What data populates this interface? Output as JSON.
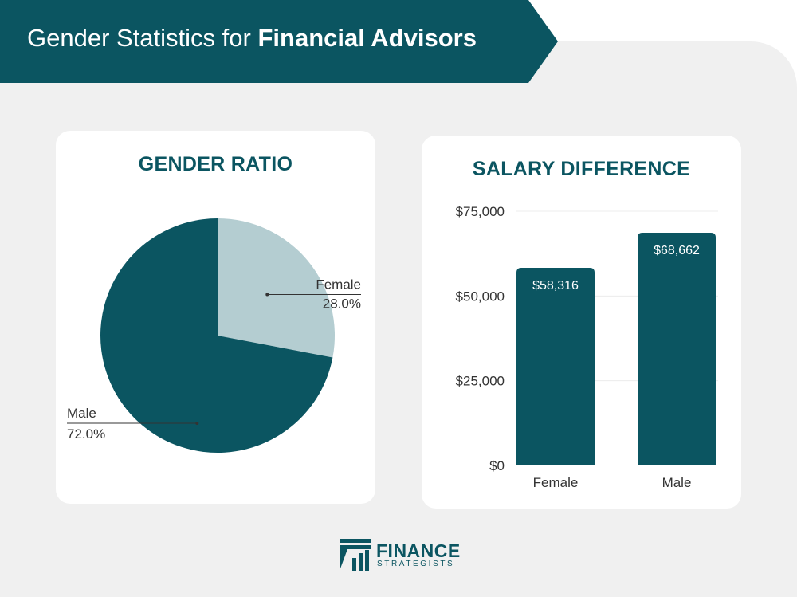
{
  "header": {
    "title_regular": "Gender Statistics for",
    "title_bold": "Financial Advisors"
  },
  "colors": {
    "primary": "#0b5561",
    "secondary": "#b4cdd1",
    "background": "#f0f0f0"
  },
  "chart_data": [
    {
      "type": "pie",
      "title": "GENDER RATIO",
      "slices": [
        {
          "label": "Female",
          "value": 28.0,
          "display": "28.0%",
          "color": "#b4cdd1"
        },
        {
          "label": "Male",
          "value": 72.0,
          "display": "72.0%",
          "color": "#0b5561"
        }
      ],
      "legend": "none"
    },
    {
      "type": "bar",
      "title": "SALARY DIFFERENCE",
      "categories": [
        "Female",
        "Male"
      ],
      "values": [
        58316,
        68662
      ],
      "value_labels": [
        "$58,316",
        "$68,662"
      ],
      "yticks": [
        0,
        25000,
        50000,
        75000
      ],
      "ytick_labels": [
        "$0",
        "$25,000",
        "$50,000",
        "$75,000"
      ],
      "ylim": [
        0,
        75000
      ],
      "xlabel": "",
      "ylabel": "",
      "grid": true,
      "bar_color": "#0b5561"
    }
  ],
  "brand": {
    "name": "FINANCE",
    "tagline": "STRATEGISTS",
    "icon": "finance-strategists-logo-icon"
  }
}
